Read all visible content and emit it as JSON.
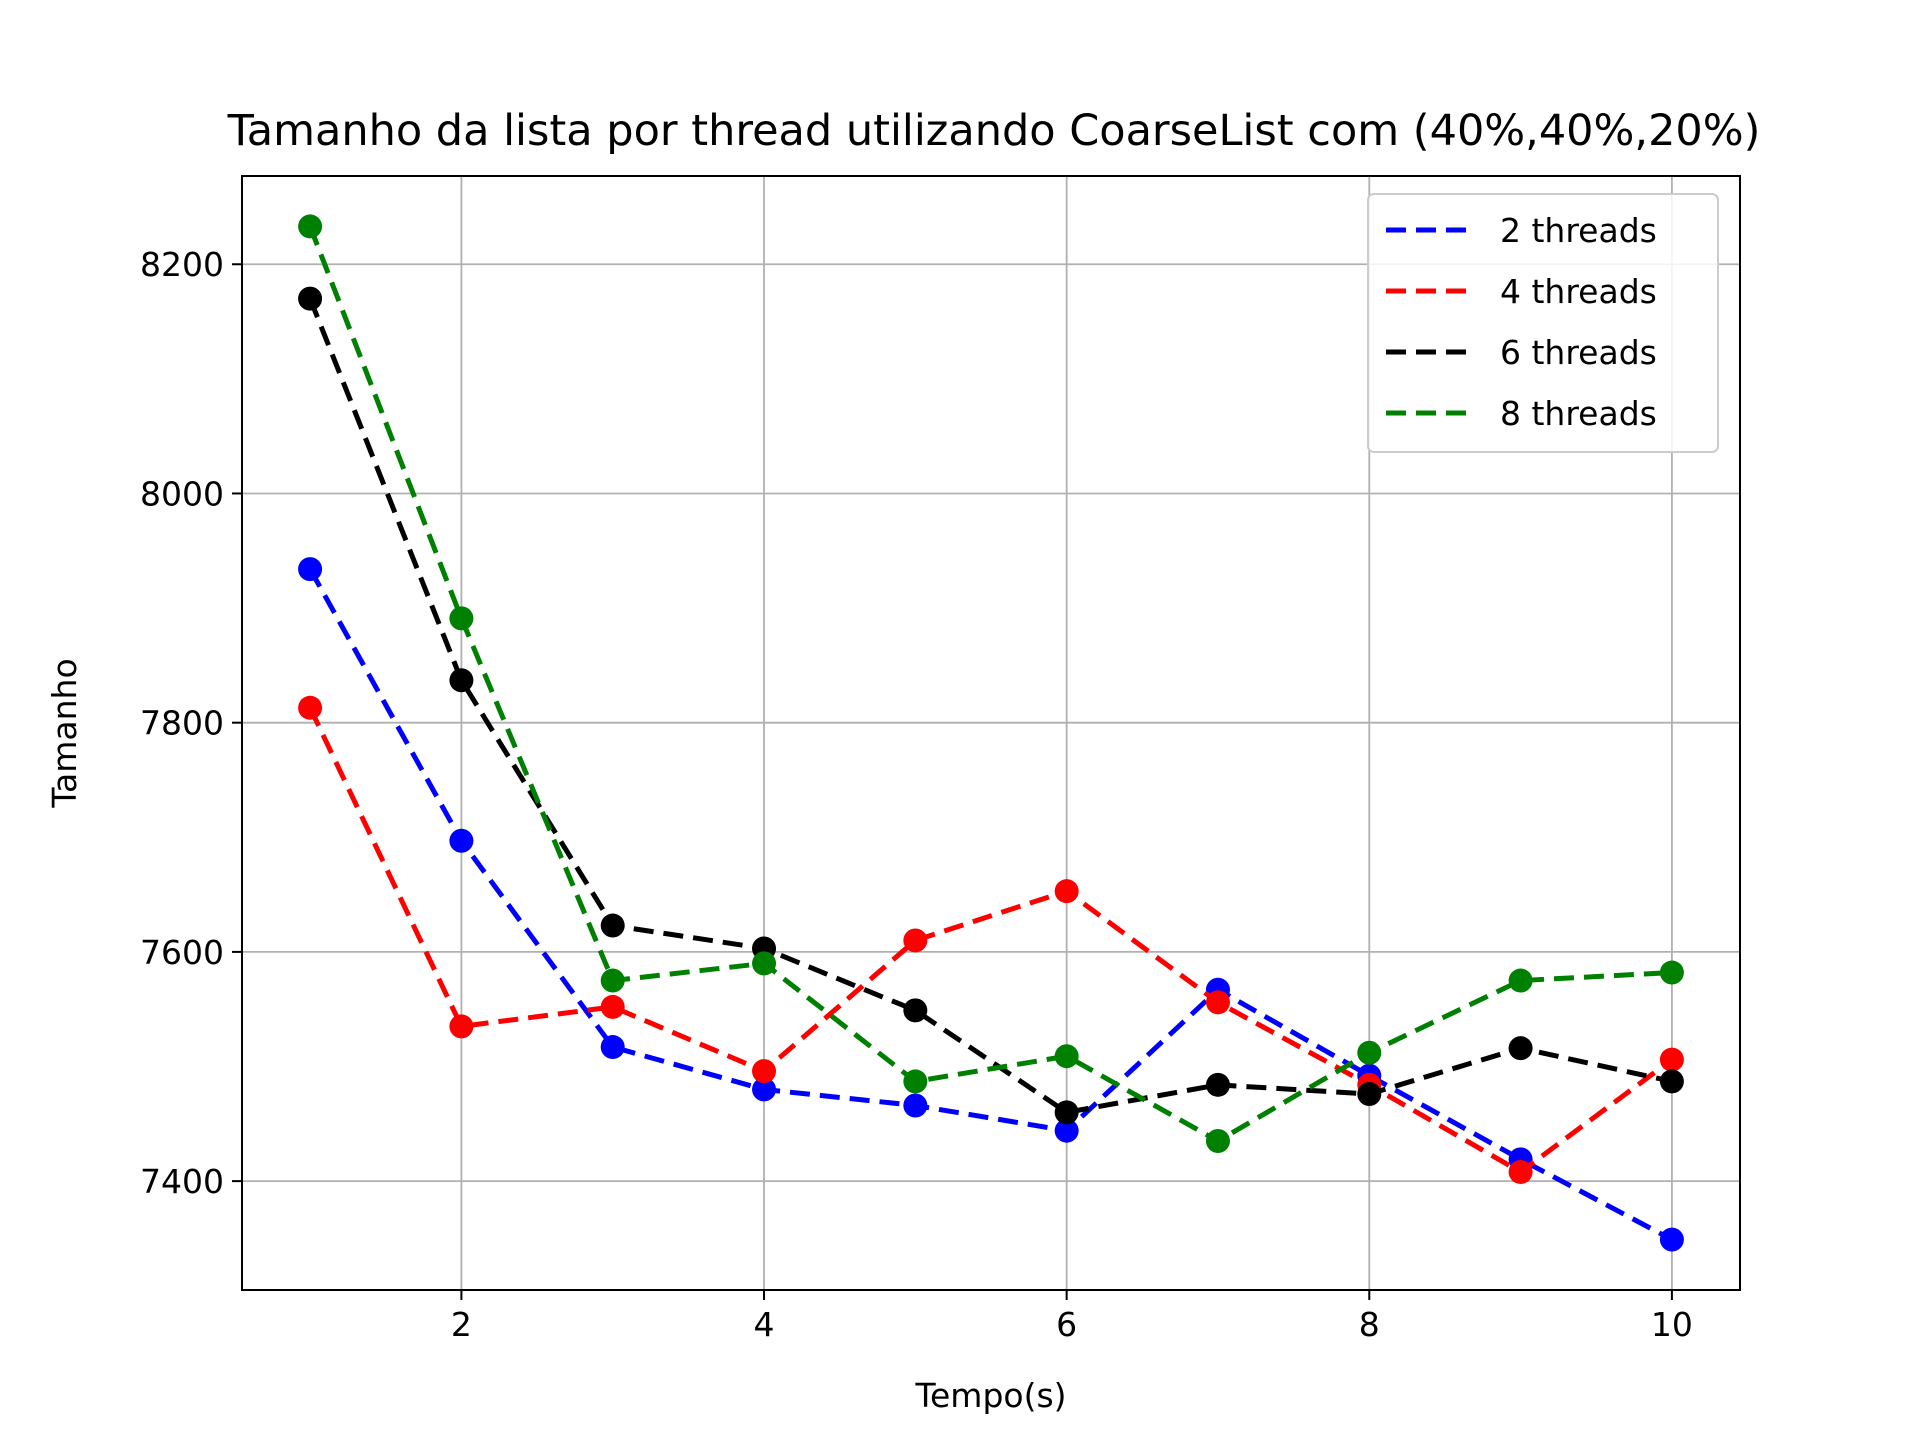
{
  "chart_data": {
    "type": "line",
    "title": "Tamanho da lista por thread utilizando CoarseList com (40%,40%,20%)",
    "xlabel": "Tempo(s)",
    "ylabel": "Tamanho",
    "x": [
      1,
      2,
      3,
      4,
      5,
      6,
      7,
      8,
      9,
      10
    ],
    "xlim": [
      0.55,
      10.45
    ],
    "ylim": [
      7305,
      8277
    ],
    "xticks": [
      2,
      4,
      6,
      8,
      10
    ],
    "yticks": [
      7400,
      7600,
      7800,
      8000,
      8200
    ],
    "grid": true,
    "legend_position": "top-right",
    "line_style": "dashed",
    "marker": "circle",
    "series": [
      {
        "name": "2 threads",
        "color": "#0000ff",
        "values": [
          7934,
          7697,
          7517,
          7480,
          7466,
          7444,
          7567,
          7492,
          7419,
          7349
        ]
      },
      {
        "name": "4 threads",
        "color": "#ff0000",
        "values": [
          7813,
          7535,
          7552,
          7496,
          7610,
          7653,
          7556,
          7484,
          7408,
          7506
        ]
      },
      {
        "name": "6 threads",
        "color": "#000000",
        "values": [
          8170,
          7837,
          7623,
          7603,
          7549,
          7460,
          7484,
          7476,
          7516,
          7487
        ]
      },
      {
        "name": "8 threads",
        "color": "#008000",
        "values": [
          8233,
          7891,
          7575,
          7590,
          7487,
          7509,
          7435,
          7512,
          7575,
          7582
        ]
      }
    ]
  }
}
